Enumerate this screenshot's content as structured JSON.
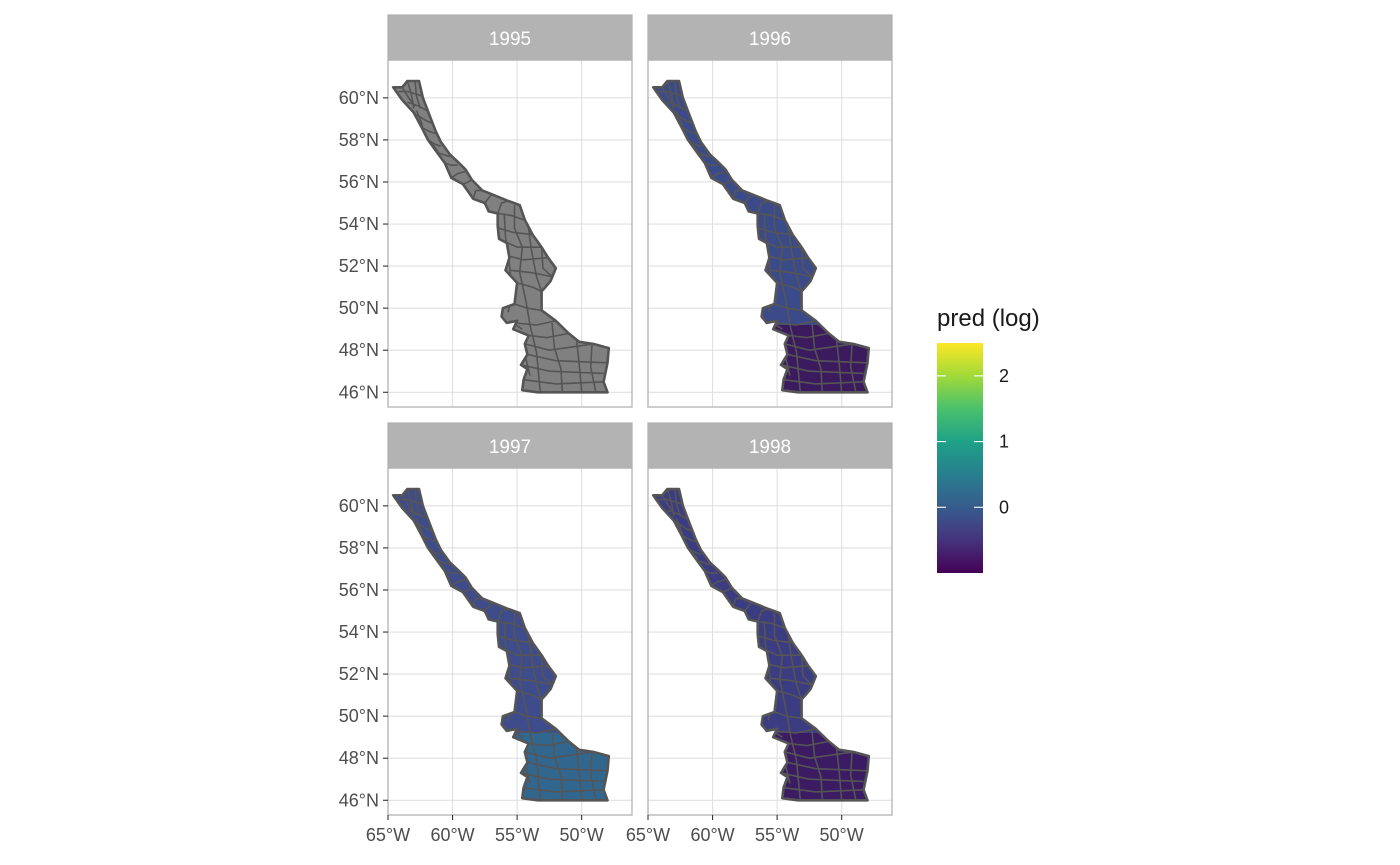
{
  "chart_data": {
    "type": "faceted_choropleth_map",
    "facets": [
      {
        "label": "1995",
        "fill": "#808080",
        "fill_name": "missing (NA) grey"
      },
      {
        "label": "1996",
        "north_fill": "#3b4b8a",
        "south_fill": "#3b1a5e"
      },
      {
        "label": "1997",
        "north_fill": "#3f4c8c",
        "south_fill": "#31668e"
      },
      {
        "label": "1998",
        "north_fill": "#3b3c82",
        "south_fill": "#3b1b62"
      }
    ],
    "x_ticks": [
      "65°W",
      "60°W",
      "55°W",
      "50°W"
    ],
    "x_tick_values": [
      -65,
      -60,
      -55,
      -50
    ],
    "y_ticks": [
      "60°N",
      "58°N",
      "56°N",
      "54°N",
      "52°N",
      "50°N",
      "48°N",
      "46°N"
    ],
    "y_tick_values": [
      60,
      58,
      56,
      54,
      52,
      50,
      48,
      46
    ],
    "xlim": [
      -65,
      -46.1
    ],
    "ylim": [
      45.3,
      61.8
    ],
    "legend": {
      "title": "pred (log)",
      "placement": "right",
      "ticks": [
        "2",
        "1",
        "0"
      ],
      "tick_values": [
        2,
        1,
        0
      ],
      "range": [
        -1,
        2.5
      ],
      "colors": [
        "#440154",
        "#46337e",
        "#365c8d",
        "#277f8e",
        "#1fa187",
        "#4ac16d",
        "#a0da39",
        "#fde725"
      ]
    },
    "grid": true,
    "cell_border_color": "#555555"
  }
}
